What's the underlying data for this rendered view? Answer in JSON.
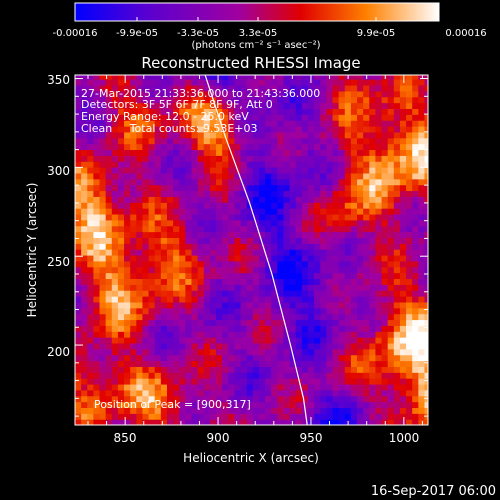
{
  "colorbar": {
    "ticks": [
      "-0.00016",
      "-9.9e-05",
      "-3.3e-05",
      "3.3e-05",
      "9.9e-05",
      "0.00016"
    ],
    "units_text": "(photons cm⁻² s⁻¹ asec⁻²)",
    "colors": [
      "#0000ff",
      "#5a00d0",
      "#a000a0",
      "#e00000",
      "#ff8000",
      "#ffffff"
    ]
  },
  "footer": {
    "timestamp": "16-Sep-2017 06:00"
  },
  "info": {
    "line1": "27-Mar-2015 21:33:36.000 to 21:43:36.000",
    "line2": "Detectors: 3F 5F 6F 7F 8F 9F, Att 0",
    "line3": "Energy Range: 12.0 - 25.0 keV",
    "line4": "Clean     Total counts: 9.53E+03",
    "peak": "Position of Peak = [900,317]"
  },
  "chart_data": {
    "type": "heatmap",
    "title": "Reconstructed RHESSI Image",
    "xlabel": "Heliocentric X (arcsec)",
    "ylabel": "Heliocentric Y (arcsec)",
    "xlim": [
      823,
      1013
    ],
    "ylim": [
      155,
      352
    ],
    "xticks": [
      850,
      900,
      950,
      1000
    ],
    "yticks": [
      200,
      250,
      300,
      350
    ],
    "value_range": [
      -0.00016,
      0.00016
    ],
    "colormap": [
      "#0000ff",
      "#5a00d0",
      "#a000a0",
      "#e00000",
      "#ff8000",
      "#ffffff"
    ],
    "limb_curve": [
      [
        893,
        352
      ],
      [
        904,
        317
      ],
      [
        917,
        280
      ],
      [
        929,
        240
      ],
      [
        939,
        200
      ],
      [
        946,
        170
      ],
      [
        948,
        155
      ]
    ],
    "peak": [
      900,
      317
    ]
  }
}
